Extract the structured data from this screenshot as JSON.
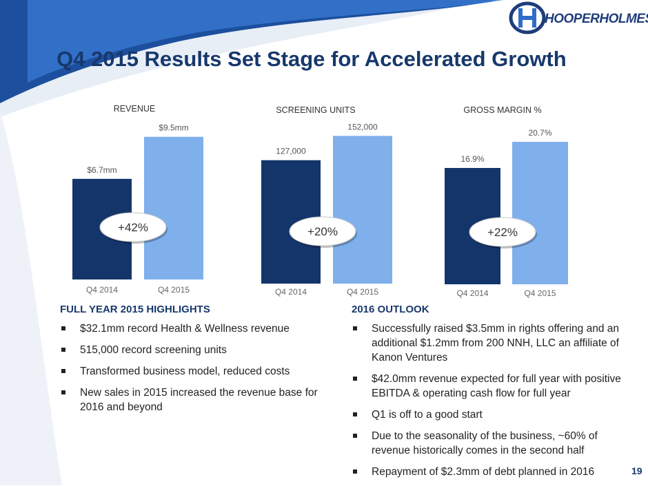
{
  "logo": {
    "brand_name": "HOOPERHOLMES"
  },
  "title": "Q4 2015 Results Set Stage for Accelerated Growth",
  "chart_data": [
    {
      "type": "bar",
      "title": "REVENUE",
      "categories": [
        "Q4 2014",
        "Q4 2015"
      ],
      "values": [
        6.7,
        9.5
      ],
      "data_labels": [
        "$6.7mm",
        "$9.5mm"
      ],
      "unit": "$mm",
      "ylim": [
        0,
        11
      ],
      "change_label": "+42%"
    },
    {
      "type": "bar",
      "title": "SCREENING UNITS",
      "categories": [
        "Q4 2014",
        "Q4 2015"
      ],
      "values": [
        127000,
        152000
      ],
      "data_labels": [
        "127,000",
        "152,000"
      ],
      "unit": "units",
      "ylim": [
        0,
        170000
      ],
      "change_label": "+20%"
    },
    {
      "type": "bar",
      "title": "GROSS MARGIN %",
      "categories": [
        "Q4 2014",
        "Q4 2015"
      ],
      "values": [
        16.9,
        20.7
      ],
      "data_labels": [
        "16.9%",
        "20.7%"
      ],
      "unit": "%",
      "ylim": [
        0,
        24
      ],
      "change_label": "+22%"
    }
  ],
  "highlights": {
    "heading": "FULL YEAR 2015 HIGHLIGHTS",
    "items": [
      "$32.1mm record Health & Wellness revenue",
      "515,000 record screening units",
      "Transformed business model, reduced costs",
      "New sales in 2015 increased the revenue base for 2016 and beyond"
    ]
  },
  "outlook": {
    "heading": "2016 OUTLOOK",
    "items": [
      "Successfully raised $3.5mm in rights offering and an additional $1.2mm from 200 NNH, LLC an affiliate of Kanon Ventures",
      "$42.0mm revenue expected for full year with positive EBITDA & operating cash flow for full year",
      "Q1 is off to a good start",
      "Due to the seasonality of the business, ~60% of revenue historically comes in the second half",
      "Repayment of $2.3mm of debt planned in 2016"
    ]
  },
  "page_number": "19",
  "colors": {
    "dark_bar": "#14356a",
    "light_bar": "#7fb0ec",
    "title": "#17386b"
  }
}
